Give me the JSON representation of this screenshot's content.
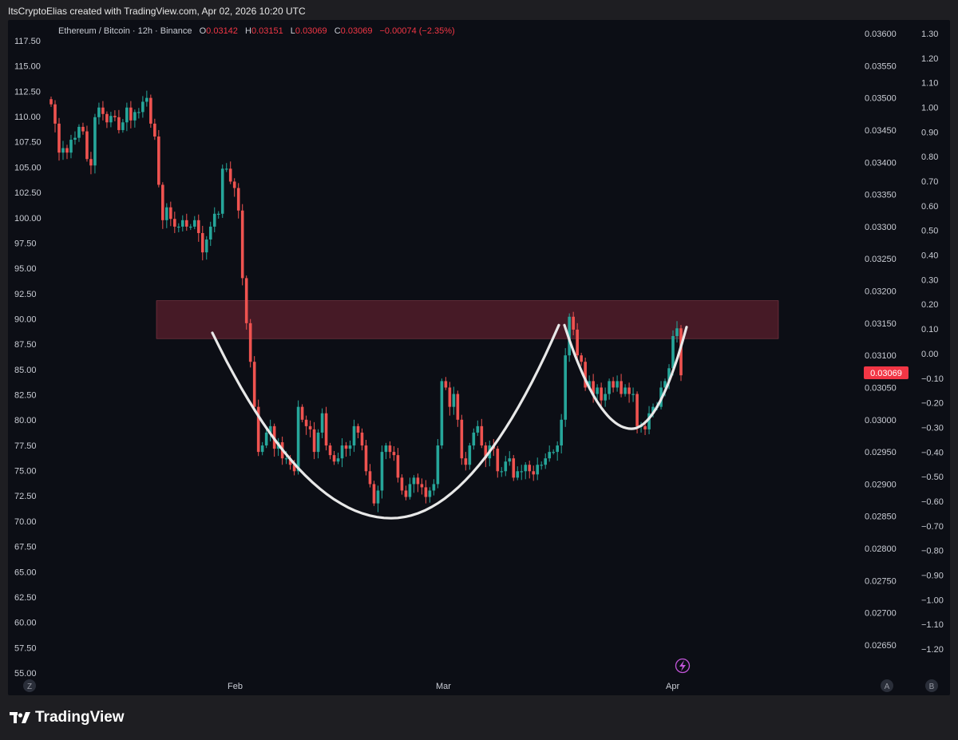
{
  "header": {
    "attribution": "ItsCryptoElias created with TradingView.com, Apr 02, 2026 10:20 UTC"
  },
  "legend": {
    "symbol": "Ethereum / Bitcoin · 12h · Binance",
    "o_label": "O",
    "o_value": "0.03142",
    "h_label": "H",
    "h_value": "0.03151",
    "l_label": "L",
    "l_value": "0.03069",
    "c_label": "C",
    "c_value": "0.03069",
    "change": "−0.00074 (−2.35%)"
  },
  "price_badge": "0.03069",
  "colors": {
    "up": "#26a69a",
    "down": "#ef5350",
    "resistance_zone": "#5a1f2c",
    "curve": "#e8e8e8",
    "badge": "#f23645",
    "background": "#0c0e15"
  },
  "scale_buttons": {
    "z": "Z",
    "a": "A",
    "b": "B"
  },
  "brand": {
    "name": "TradingView",
    "logo_icon": "tradingview-logo-icon"
  },
  "bolt_icon": "lightning-icon",
  "chart_data": {
    "type": "candlestick",
    "title": "Ethereum / Bitcoin · 12h · Binance",
    "left_axis": {
      "ticks": [
        "117.50",
        "115.00",
        "112.50",
        "110.00",
        "107.50",
        "105.00",
        "102.50",
        "100.00",
        "97.50",
        "95.00",
        "92.50",
        "90.00",
        "87.50",
        "85.00",
        "82.50",
        "80.00",
        "77.50",
        "75.00",
        "72.50",
        "70.00",
        "67.50",
        "65.00",
        "62.50",
        "60.00",
        "57.50",
        "55.00"
      ],
      "range": [
        55.0,
        117.5
      ]
    },
    "price_axis": {
      "ticks": [
        "0.03600",
        "0.03550",
        "0.03500",
        "0.03450",
        "0.03400",
        "0.03350",
        "0.03300",
        "0.03250",
        "0.03200",
        "0.03150",
        "0.03100",
        "0.03050",
        "0.03000",
        "0.02950",
        "0.02900",
        "0.02850",
        "0.02800",
        "0.02750",
        "0.02700",
        "0.02650"
      ],
      "range": [
        0.026,
        0.0361
      ]
    },
    "right_axis": {
      "ticks": [
        "1.30",
        "1.20",
        "1.10",
        "1.00",
        "0.90",
        "0.80",
        "0.70",
        "0.60",
        "0.50",
        "0.40",
        "0.30",
        "0.20",
        "0.10",
        "0.00",
        "−0.10",
        "−0.20",
        "−0.30",
        "−0.40",
        "−0.50",
        "−0.60",
        "−0.70",
        "−0.80",
        "−0.90",
        "−1.00",
        "−1.10",
        "−1.20"
      ]
    },
    "x_axis": {
      "ticks": [
        "Feb",
        "Mar",
        "Apr"
      ]
    },
    "resistance_zone": {
      "low": 0.03126,
      "high": 0.03185
    },
    "cup_curve_left": {
      "start": 0.03135,
      "bottom": 0.02847,
      "end": 0.03147
    },
    "cup_curve_right": {
      "start": 0.03147,
      "bottom": 0.02986,
      "end": 0.03144
    },
    "candles_close": [
      0.0349,
      0.0346,
      0.03415,
      0.03422,
      0.03415,
      0.03435,
      0.03438,
      0.03455,
      0.03448,
      0.03405,
      0.03395,
      0.0347,
      0.03485,
      0.03475,
      0.03462,
      0.03472,
      0.0347,
      0.0345,
      0.03462,
      0.03485,
      0.03465,
      0.03478,
      0.03478,
      0.03494,
      0.035,
      0.0346,
      0.0344,
      0.03365,
      0.0331,
      0.0333,
      0.03312,
      0.033,
      0.033,
      0.0331,
      0.033,
      0.033,
      0.0331,
      0.0329,
      0.0326,
      0.0328,
      0.033,
      0.0332,
      0.0332,
      0.0339,
      0.0339,
      0.0337,
      0.0336,
      0.03325,
      0.0322,
      0.0315,
      0.0309,
      0.0302,
      0.0295,
      0.0296,
      0.0298,
      0.0299,
      0.02955,
      0.02965,
      0.0294,
      0.0294,
      0.0293,
      0.0292,
      0.0302,
      0.03,
      0.0299,
      0.02985,
      0.0295,
      0.0298,
      0.0301,
      0.0296,
      0.02945,
      0.02935,
      0.0294,
      0.0296,
      0.02955,
      0.0296,
      0.0299,
      0.0298,
      0.0296,
      0.0292,
      0.029,
      0.0287,
      0.0289,
      0.0295,
      0.0296,
      0.0295,
      0.02945,
      0.0291,
      0.0289,
      0.0288,
      0.029,
      0.0291,
      0.029,
      0.02895,
      0.0288,
      0.0289,
      0.029,
      0.0296,
      0.0306,
      0.0305,
      0.0302,
      0.0304,
      0.03,
      0.0294,
      0.0293,
      0.0296,
      0.0298,
      0.0299,
      0.0296,
      0.0294,
      0.0296,
      0.02955,
      0.0292,
      0.0292,
      0.02935,
      0.0294,
      0.0291,
      0.0292,
      0.0292,
      0.0293,
      0.0292,
      0.02915,
      0.0293,
      0.0293,
      0.0294,
      0.0295,
      0.0295,
      0.0296,
      0.03,
      0.031,
      0.0316,
      0.0314,
      0.031,
      0.0309,
      0.0305,
      0.0306,
      0.0304,
      0.0305,
      0.0303,
      0.0304,
      0.0306,
      0.0305,
      0.0306,
      0.0304,
      0.0305,
      0.0304,
      0.0304,
      0.0299,
      0.0299,
      0.02985,
      0.0301,
      0.0302,
      0.0302,
      0.0305,
      0.0306,
      0.0308,
      0.0313,
      0.03142,
      0.03069
    ]
  }
}
